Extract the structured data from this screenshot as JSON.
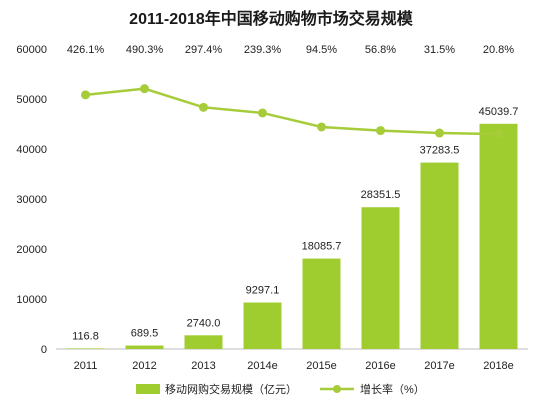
{
  "chart_data": {
    "type": "bar",
    "title": "2011-2018年中国移动购物市场交易规模",
    "categories": [
      "2011",
      "2012",
      "2013",
      "2014e",
      "2015e",
      "2016e",
      "2017e",
      "2018e"
    ],
    "series": [
      {
        "name": "移动网购交易规模（亿元）",
        "type": "bar",
        "values": [
          116.8,
          689.5,
          2740.0,
          9297.1,
          18085.7,
          28351.5,
          37283.5,
          45039.7
        ],
        "labels": [
          "116.8",
          "689.5",
          "2740.0",
          "9297.1",
          "18085.7",
          "28351.5",
          "37283.5",
          "45039.7"
        ],
        "color": "#9fcc2e"
      },
      {
        "name": "增长率（%）",
        "type": "line",
        "values": [
          426.1,
          490.3,
          297.4,
          239.3,
          94.5,
          56.8,
          31.5,
          20.8
        ],
        "labels": [
          "426.1%",
          "490.3%",
          "297.4%",
          "239.3%",
          "94.5%",
          "56.8%",
          "31.5%",
          "20.8%"
        ],
        "color": "#a6cc3a",
        "secondary_axis": true,
        "secondary_axis_shown": false
      }
    ],
    "ylim": [
      0,
      60000
    ],
    "yticks": [
      "0",
      "10000",
      "20000",
      "30000",
      "40000",
      "50000",
      "60000"
    ],
    "grid": false,
    "legend": "bottom"
  }
}
